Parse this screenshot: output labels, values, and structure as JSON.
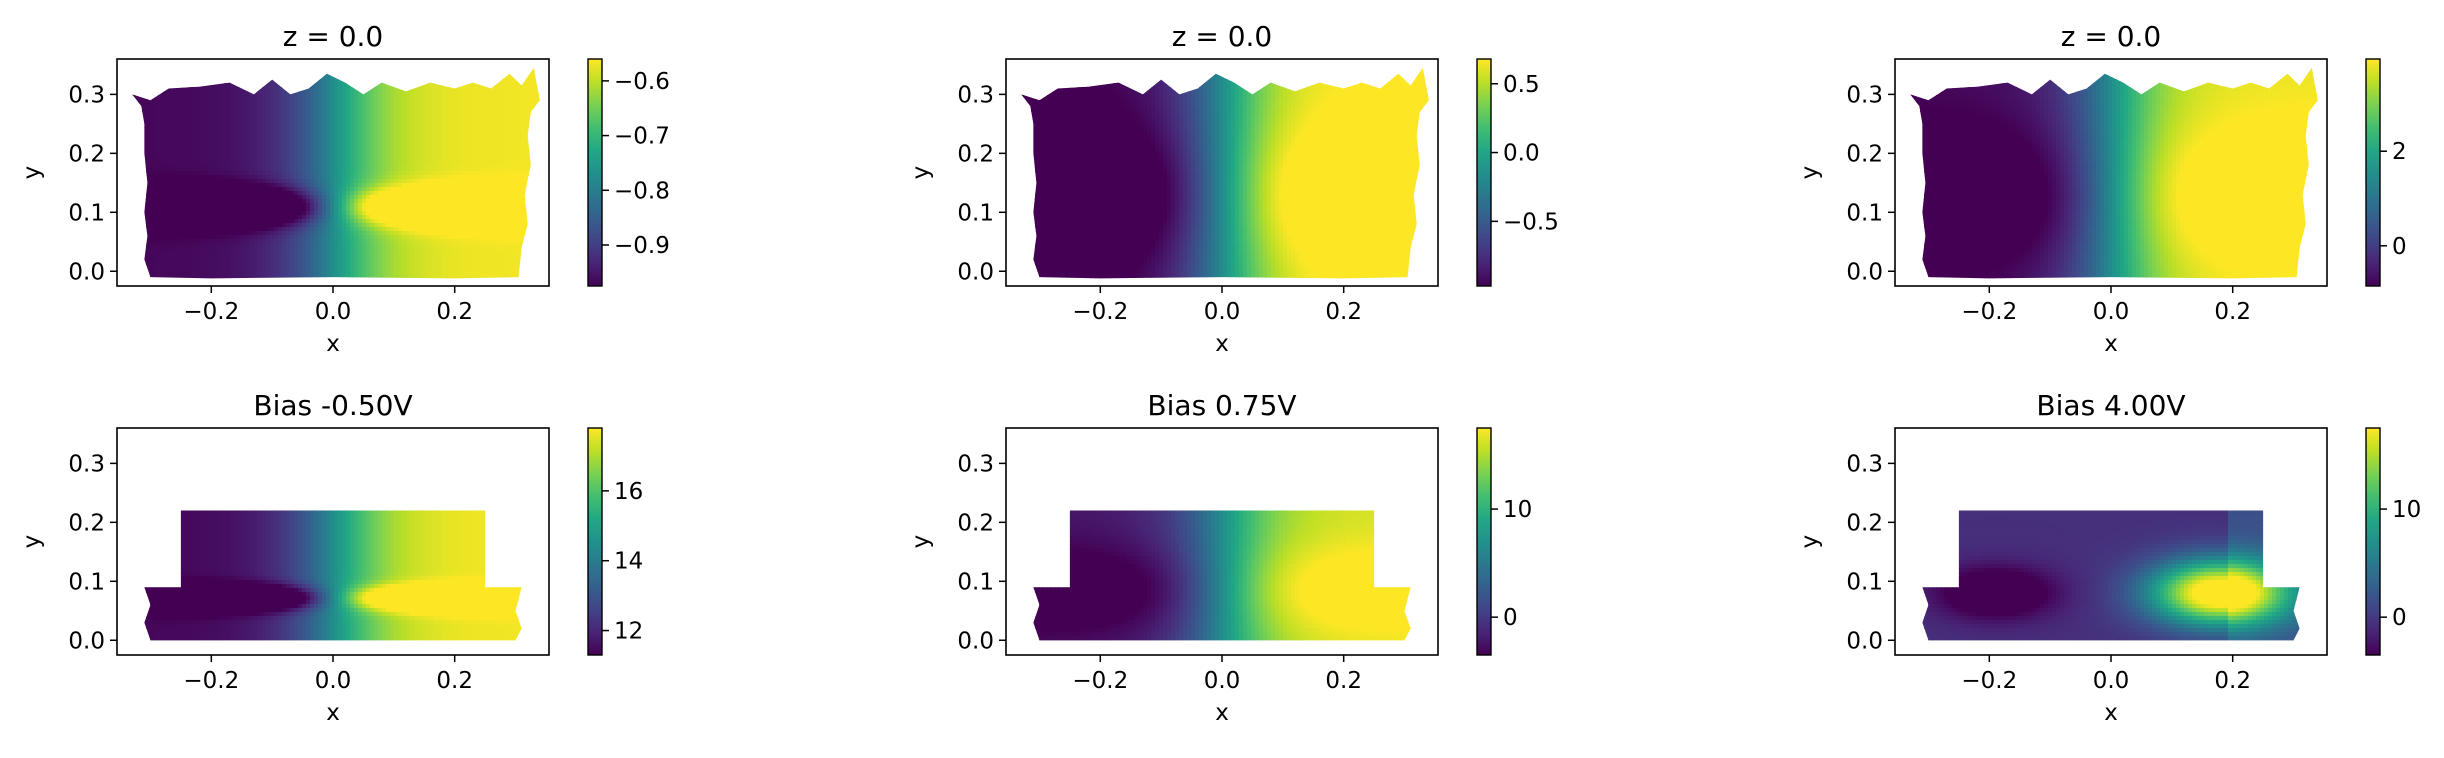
{
  "colormap": "viridis",
  "chart_data": [
    {
      "type": "heatmap",
      "title": "z = 0.0",
      "xlabel": "x",
      "ylabel": "y",
      "xlim": [
        -0.355,
        0.355
      ],
      "ylim": [
        -0.025,
        0.36
      ],
      "xticks": [
        -0.2,
        0.0,
        0.2
      ],
      "xtick_labels": [
        "−0.2",
        "0.0",
        "0.2"
      ],
      "yticks": [
        0.0,
        0.1,
        0.2,
        0.3
      ],
      "ytick_labels": [
        "0.0",
        "0.1",
        "0.2",
        "0.3"
      ],
      "shape": "full",
      "colorbar": {
        "range": [
          -0.975,
          -0.56
        ],
        "ticks": [
          -0.9,
          -0.8,
          -0.7,
          -0.6
        ],
        "tick_labels": [
          "−0.9",
          "−0.8",
          "−0.7",
          "−0.6"
        ]
      },
      "field": {
        "min": -0.975,
        "max": -0.56,
        "profile": "pin",
        "contrast": 2.2
      }
    },
    {
      "type": "heatmap",
      "title": "z = 0.0",
      "xlabel": "x",
      "ylabel": "y",
      "xlim": [
        -0.355,
        0.355
      ],
      "ylim": [
        -0.025,
        0.36
      ],
      "xticks": [
        -0.2,
        0.0,
        0.2
      ],
      "xtick_labels": [
        "−0.2",
        "0.0",
        "0.2"
      ],
      "yticks": [
        0.0,
        0.1,
        0.2,
        0.3
      ],
      "ytick_labels": [
        "0.0",
        "0.1",
        "0.2",
        "0.3"
      ],
      "shape": "full",
      "colorbar": {
        "range": [
          -0.97,
          0.68
        ],
        "ticks": [
          -0.5,
          0.0,
          0.5
        ],
        "tick_labels": [
          "−0.5",
          "0.0",
          "0.5"
        ]
      },
      "field": {
        "min": -0.97,
        "max": 0.68,
        "profile": "smooth",
        "contrast": 1.5
      }
    },
    {
      "type": "heatmap",
      "title": "z = 0.0",
      "xlabel": "x",
      "ylabel": "y",
      "xlim": [
        -0.355,
        0.355
      ],
      "ylim": [
        -0.025,
        0.36
      ],
      "xticks": [
        -0.2,
        0.0,
        0.2
      ],
      "xtick_labels": [
        "−0.2",
        "0.0",
        "0.2"
      ],
      "yticks": [
        0.0,
        0.1,
        0.2,
        0.3
      ],
      "ytick_labels": [
        "0.0",
        "0.1",
        "0.2",
        "0.3"
      ],
      "shape": "full",
      "colorbar": {
        "range": [
          -0.85,
          3.95
        ],
        "ticks": [
          0,
          2
        ],
        "tick_labels": [
          "0",
          "2"
        ]
      },
      "field": {
        "min": -0.85,
        "max": 3.95,
        "profile": "smooth",
        "contrast": 1.4
      }
    },
    {
      "type": "heatmap",
      "title": "Bias -0.50V",
      "xlabel": "x",
      "ylabel": "y",
      "xlim": [
        -0.355,
        0.355
      ],
      "ylim": [
        -0.025,
        0.36
      ],
      "xticks": [
        -0.2,
        0.0,
        0.2
      ],
      "xtick_labels": [
        "−0.2",
        "0.0",
        "0.2"
      ],
      "yticks": [
        0.0,
        0.1,
        0.2,
        0.3
      ],
      "ytick_labels": [
        "0.0",
        "0.1",
        "0.2",
        "0.3"
      ],
      "shape": "stepped",
      "colorbar": {
        "range": [
          11.3,
          17.8
        ],
        "ticks": [
          12,
          14,
          16
        ],
        "tick_labels": [
          "12",
          "14",
          "16"
        ]
      },
      "field": {
        "min": 11.3,
        "max": 17.8,
        "profile": "pin",
        "contrast": 2.2
      }
    },
    {
      "type": "heatmap",
      "title": "Bias 0.75V",
      "xlabel": "x",
      "ylabel": "y",
      "xlim": [
        -0.355,
        0.355
      ],
      "ylim": [
        -0.025,
        0.36
      ],
      "xticks": [
        -0.2,
        0.0,
        0.2
      ],
      "xtick_labels": [
        "−0.2",
        "0.0",
        "0.2"
      ],
      "yticks": [
        0.0,
        0.1,
        0.2,
        0.3
      ],
      "ytick_labels": [
        "0.0",
        "0.1",
        "0.2",
        "0.3"
      ],
      "shape": "stepped",
      "colorbar": {
        "range": [
          -3.5,
          17.5
        ],
        "ticks": [
          0,
          10
        ],
        "tick_labels": [
          "0",
          "10"
        ]
      },
      "field": {
        "min": -3.5,
        "max": 17.5,
        "profile": "smooth",
        "contrast": 1.3
      }
    },
    {
      "type": "heatmap",
      "title": "Bias 4.00V",
      "xlabel": "x",
      "ylabel": "y",
      "xlim": [
        -0.355,
        0.355
      ],
      "ylim": [
        -0.025,
        0.36
      ],
      "xticks": [
        -0.2,
        0.0,
        0.2
      ],
      "xtick_labels": [
        "−0.2",
        "0.0",
        "0.2"
      ],
      "yticks": [
        0.0,
        0.1,
        0.2,
        0.3
      ],
      "ytick_labels": [
        "0.0",
        "0.1",
        "0.2",
        "0.3"
      ],
      "shape": "stepped",
      "colorbar": {
        "range": [
          -3.5,
          17.5
        ],
        "ticks": [
          0,
          10
        ],
        "tick_labels": [
          "0",
          "10"
        ]
      },
      "field": {
        "min": -3.5,
        "max": 17.5,
        "profile": "bias4",
        "contrast": 1.3
      }
    }
  ]
}
